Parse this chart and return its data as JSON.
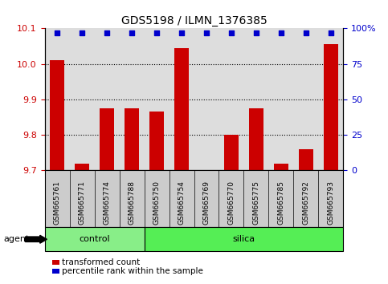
{
  "title": "GDS5198 / ILMN_1376385",
  "samples": [
    "GSM665761",
    "GSM665771",
    "GSM665774",
    "GSM665788",
    "GSM665750",
    "GSM665754",
    "GSM665769",
    "GSM665770",
    "GSM665775",
    "GSM665785",
    "GSM665792",
    "GSM665793"
  ],
  "transformed_count": [
    10.01,
    9.72,
    9.875,
    9.875,
    9.865,
    10.045,
    9.685,
    9.8,
    9.875,
    9.72,
    9.76,
    10.055
  ],
  "percentile_rank": [
    97,
    97,
    97,
    97,
    97,
    97,
    97,
    97,
    97,
    97,
    97,
    97
  ],
  "ylim_left": [
    9.7,
    10.1
  ],
  "ylim_right": [
    0,
    100
  ],
  "yticks_left": [
    9.7,
    9.8,
    9.9,
    10.0,
    10.1
  ],
  "yticks_right": [
    0,
    25,
    50,
    75,
    100
  ],
  "ytick_labels_right": [
    "0",
    "25",
    "50",
    "75",
    "100%"
  ],
  "bar_color": "#cc0000",
  "dot_color": "#0000cc",
  "n_control": 4,
  "n_silica": 8,
  "control_color": "#88ee88",
  "silica_color": "#55ee55",
  "agent_label": "agent",
  "control_label": "control",
  "silica_label": "silica",
  "legend_bar_label": "transformed count",
  "legend_dot_label": "percentile rank within the sample",
  "grid_color": "#000000",
  "background_color": "#ffffff",
  "plot_bg_color": "#dddddd",
  "tick_label_color_left": "#cc0000",
  "tick_label_color_right": "#0000cc",
  "xticklabel_bg": "#cccccc"
}
